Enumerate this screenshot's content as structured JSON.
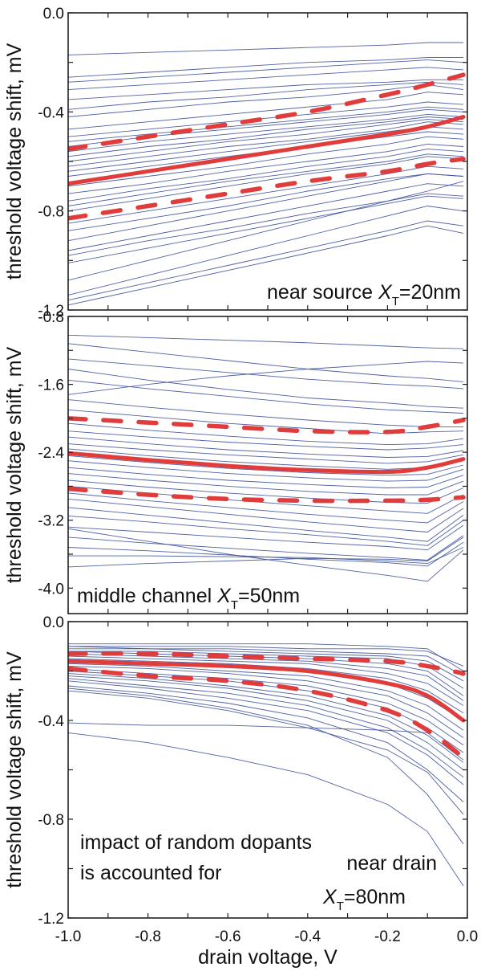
{
  "chart_data": {
    "type": "line",
    "xlabel": "drain voltage, V",
    "xlim": [
      -1.0,
      0.0
    ],
    "xticks": [
      "-1.0",
      "-0.8",
      "-0.6",
      "-0.4",
      "-0.2",
      "0.0"
    ],
    "xtick_values": [
      -1.0,
      -0.8,
      -0.6,
      -0.4,
      -0.2,
      0.0
    ],
    "x_minor_step": 0.1,
    "x": [
      -1.0,
      -0.8,
      -0.6,
      -0.4,
      -0.2,
      -0.1,
      -0.01
    ],
    "colors": {
      "traces": "#3b4f9a",
      "mean": "#e03c3c",
      "sigma": "#e03c3c"
    },
    "panels": [
      {
        "name": "near-source",
        "ylabel": "threshold voltage shift, mV",
        "ylim": [
          -1.2,
          0.0
        ],
        "yticks": [
          "0.0",
          "-0.4",
          "-0.8",
          "-1.2"
        ],
        "ytick_values": [
          0.0,
          -0.4,
          -0.8,
          -1.2
        ],
        "y_minor_step": 0.2,
        "annotation": {
          "text": "near source ",
          "symbol": "X",
          "subscript": "T",
          "value": "=20nm",
          "position": "bottom-right"
        },
        "mean": [
          -0.69,
          -0.64,
          -0.59,
          -0.54,
          -0.49,
          -0.46,
          -0.42
        ],
        "upper_sigma": [
          -0.55,
          -0.5,
          -0.45,
          -0.4,
          -0.33,
          -0.29,
          -0.25
        ],
        "lower_sigma": [
          -0.83,
          -0.78,
          -0.73,
          -0.68,
          -0.64,
          -0.61,
          -0.59
        ],
        "traces": [
          [
            -0.17,
            -0.16,
            -0.15,
            -0.14,
            -0.13,
            -0.12,
            -0.12
          ],
          [
            -0.26,
            -0.24,
            -0.22,
            -0.2,
            -0.19,
            -0.18,
            -0.18
          ],
          [
            -0.28,
            -0.26,
            -0.24,
            -0.22,
            -0.2,
            -0.19,
            -0.2
          ],
          [
            -0.31,
            -0.29,
            -0.27,
            -0.25,
            -0.23,
            -0.22,
            -0.23
          ],
          [
            -0.35,
            -0.33,
            -0.31,
            -0.29,
            -0.28,
            -0.27,
            -0.27
          ],
          [
            -0.39,
            -0.36,
            -0.34,
            -0.31,
            -0.29,
            -0.28,
            -0.29
          ],
          [
            -0.42,
            -0.39,
            -0.36,
            -0.34,
            -0.31,
            -0.29,
            -0.31
          ],
          [
            -0.47,
            -0.44,
            -0.41,
            -0.38,
            -0.35,
            -0.32,
            -0.33
          ],
          [
            -0.5,
            -0.47,
            -0.44,
            -0.41,
            -0.38,
            -0.36,
            -0.37
          ],
          [
            -0.52,
            -0.49,
            -0.46,
            -0.43,
            -0.4,
            -0.38,
            -0.39
          ],
          [
            -0.54,
            -0.5,
            -0.47,
            -0.44,
            -0.41,
            -0.39,
            -0.4
          ],
          [
            -0.56,
            -0.52,
            -0.49,
            -0.46,
            -0.43,
            -0.41,
            -0.42
          ],
          [
            -0.58,
            -0.54,
            -0.51,
            -0.47,
            -0.44,
            -0.42,
            -0.43
          ],
          [
            -0.6,
            -0.56,
            -0.52,
            -0.49,
            -0.45,
            -0.43,
            -0.44
          ],
          [
            -0.62,
            -0.58,
            -0.54,
            -0.51,
            -0.47,
            -0.44,
            -0.45
          ],
          [
            -0.64,
            -0.6,
            -0.56,
            -0.52,
            -0.48,
            -0.46,
            -0.47
          ],
          [
            -0.66,
            -0.62,
            -0.58,
            -0.54,
            -0.5,
            -0.48,
            -0.49
          ],
          [
            -0.7,
            -0.66,
            -0.62,
            -0.57,
            -0.53,
            -0.5,
            -0.51
          ],
          [
            -0.73,
            -0.69,
            -0.64,
            -0.6,
            -0.56,
            -0.53,
            -0.54
          ],
          [
            -0.76,
            -0.71,
            -0.67,
            -0.62,
            -0.58,
            -0.55,
            -0.56
          ],
          [
            -0.78,
            -0.73,
            -0.68,
            -0.64,
            -0.6,
            -0.57,
            -0.58
          ],
          [
            -0.8,
            -0.75,
            -0.7,
            -0.65,
            -0.61,
            -0.58,
            -0.59
          ],
          [
            -0.85,
            -0.8,
            -0.75,
            -0.7,
            -0.65,
            -0.62,
            -0.63
          ],
          [
            -0.88,
            -0.83,
            -0.78,
            -0.72,
            -0.67,
            -0.65,
            -0.66
          ],
          [
            -0.92,
            -0.86,
            -0.8,
            -0.74,
            -0.68,
            -0.65,
            -0.66
          ],
          [
            -0.96,
            -0.9,
            -0.84,
            -0.78,
            -0.72,
            -0.69,
            -0.7
          ],
          [
            -0.98,
            -0.92,
            -0.87,
            -0.81,
            -0.76,
            -0.73,
            -0.74
          ],
          [
            -1.01,
            -0.95,
            -0.89,
            -0.83,
            -0.77,
            -0.74,
            -0.75
          ],
          [
            -1.08,
            -1.0,
            -0.92,
            -0.84,
            -0.76,
            -0.72,
            -0.68
          ],
          [
            -1.14,
            -1.06,
            -0.98,
            -0.9,
            -0.82,
            -0.78,
            -0.8
          ],
          [
            -1.16,
            -1.09,
            -1.02,
            -0.95,
            -0.88,
            -0.84,
            -0.86
          ],
          [
            -1.18,
            -1.11,
            -1.04,
            -0.97,
            -0.9,
            -0.86,
            -0.89
          ]
        ]
      },
      {
        "name": "middle-channel",
        "ylabel": "threshold voltage shift, mV",
        "ylim": [
          -4.3,
          -0.8
        ],
        "yticks": [
          "-0.8",
          "-1.6",
          "-2.4",
          "-3.2",
          "-4.0"
        ],
        "ytick_values": [
          -0.8,
          -1.6,
          -2.4,
          -3.2,
          -4.0
        ],
        "y_minor_step": 0.4,
        "annotation": {
          "text": "middle channel  ",
          "symbol": "X",
          "subscript": "T",
          "value": "=50nm",
          "position": "bottom-left"
        },
        "mean": [
          -2.41,
          -2.49,
          -2.56,
          -2.61,
          -2.63,
          -2.58,
          -2.48
        ],
        "upper_sigma": [
          -2.0,
          -2.05,
          -2.1,
          -2.15,
          -2.16,
          -2.1,
          -2.02
        ],
        "lower_sigma": [
          -2.83,
          -2.9,
          -2.95,
          -2.97,
          -2.97,
          -2.96,
          -2.93
        ],
        "traces": [
          [
            -1.02,
            -1.05,
            -1.08,
            -1.11,
            -1.15,
            -1.17,
            -1.18
          ],
          [
            -1.12,
            -1.22,
            -1.32,
            -1.42,
            -1.5,
            -1.53,
            -1.57
          ],
          [
            -1.3,
            -1.38,
            -1.46,
            -1.54,
            -1.6,
            -1.62,
            -1.65
          ],
          [
            -1.42,
            -1.55,
            -1.66,
            -1.76,
            -1.82,
            -1.86,
            -1.88
          ],
          [
            -1.55,
            -1.65,
            -1.74,
            -1.83,
            -1.9,
            -1.92,
            -1.94
          ],
          [
            -1.72,
            -1.6,
            -1.5,
            -1.42,
            -1.36,
            -1.33,
            -1.35
          ],
          [
            -1.78,
            -1.87,
            -1.95,
            -2.02,
            -2.08,
            -2.1,
            -2.1
          ],
          [
            -1.9,
            -1.98,
            -2.06,
            -2.12,
            -2.18,
            -2.16,
            -2.15
          ],
          [
            -2.06,
            -2.14,
            -2.21,
            -2.27,
            -2.31,
            -2.3,
            -2.24
          ],
          [
            -2.15,
            -2.22,
            -2.28,
            -2.33,
            -2.37,
            -2.35,
            -2.31
          ],
          [
            -2.22,
            -2.3,
            -2.37,
            -2.42,
            -2.46,
            -2.45,
            -2.38
          ],
          [
            -2.3,
            -2.37,
            -2.43,
            -2.48,
            -2.53,
            -2.51,
            -2.43
          ],
          [
            -2.36,
            -2.44,
            -2.51,
            -2.56,
            -2.6,
            -2.58,
            -2.5
          ],
          [
            -2.44,
            -2.52,
            -2.59,
            -2.64,
            -2.67,
            -2.66,
            -2.55
          ],
          [
            -2.5,
            -2.58,
            -2.65,
            -2.7,
            -2.74,
            -2.73,
            -2.6
          ],
          [
            -2.58,
            -2.66,
            -2.73,
            -2.78,
            -2.82,
            -2.81,
            -2.67
          ],
          [
            -2.65,
            -2.73,
            -2.8,
            -2.86,
            -2.9,
            -2.9,
            -2.74
          ],
          [
            -2.73,
            -2.81,
            -2.88,
            -2.94,
            -2.99,
            -3.0,
            -2.82
          ],
          [
            -2.8,
            -2.88,
            -2.96,
            -3.03,
            -3.09,
            -3.12,
            -2.9
          ],
          [
            -2.88,
            -2.97,
            -3.05,
            -3.13,
            -3.2,
            -3.23,
            -2.98
          ],
          [
            -2.95,
            -3.04,
            -3.13,
            -3.22,
            -3.3,
            -3.34,
            -3.06
          ],
          [
            -3.05,
            -3.14,
            -3.23,
            -3.32,
            -3.4,
            -3.45,
            -3.14
          ],
          [
            -3.15,
            -3.22,
            -3.3,
            -3.37,
            -3.45,
            -3.5,
            -3.2
          ],
          [
            -3.28,
            -3.34,
            -3.4,
            -3.46,
            -3.51,
            -3.55,
            -3.26
          ],
          [
            -3.4,
            -3.47,
            -3.53,
            -3.59,
            -3.64,
            -3.67,
            -3.38
          ],
          [
            -3.52,
            -3.56,
            -3.61,
            -3.66,
            -3.7,
            -3.74,
            -3.46
          ],
          [
            -3.62,
            -3.62,
            -3.63,
            -3.64,
            -3.68,
            -3.71,
            -3.52
          ],
          [
            -3.75,
            -3.71,
            -3.68,
            -3.65,
            -3.66,
            -3.68,
            -3.4
          ],
          [
            -3.3,
            -3.45,
            -3.6,
            -3.73,
            -3.85,
            -3.92,
            -3.55
          ]
        ]
      },
      {
        "name": "near-drain",
        "ylabel": "threshold voltage shift, mV",
        "ylim": [
          -1.2,
          0.0
        ],
        "yticks": [
          "0.0",
          "-0.4",
          "-0.8",
          "-1.2"
        ],
        "ytick_values": [
          0.0,
          -0.4,
          -0.8,
          -1.2
        ],
        "y_minor_step": 0.2,
        "annotation_lines": [
          "impact of random dopants",
          "is accounted for"
        ],
        "annotation": {
          "text": "near drain",
          "symbol": "X",
          "subscript": "T",
          "value": "=80nm",
          "position": "bottom-right"
        },
        "mean": [
          -0.16,
          -0.17,
          -0.18,
          -0.2,
          -0.25,
          -0.3,
          -0.4
        ],
        "upper_sigma": [
          -0.13,
          -0.13,
          -0.14,
          -0.15,
          -0.16,
          -0.18,
          -0.21
        ],
        "lower_sigma": [
          -0.19,
          -0.22,
          -0.24,
          -0.28,
          -0.36,
          -0.44,
          -0.55
        ],
        "traces": [
          [
            -0.09,
            -0.09,
            -0.09,
            -0.09,
            -0.1,
            -0.11,
            -0.2
          ],
          [
            -0.1,
            -0.1,
            -0.1,
            -0.11,
            -0.11,
            -0.12,
            -0.18
          ],
          [
            -0.1,
            -0.11,
            -0.11,
            -0.12,
            -0.13,
            -0.14,
            -0.22
          ],
          [
            -0.11,
            -0.11,
            -0.12,
            -0.13,
            -0.14,
            -0.16,
            -0.24
          ],
          [
            -0.12,
            -0.12,
            -0.13,
            -0.14,
            -0.15,
            -0.18,
            -0.27
          ],
          [
            -0.12,
            -0.13,
            -0.14,
            -0.15,
            -0.17,
            -0.2,
            -0.3
          ],
          [
            -0.13,
            -0.14,
            -0.15,
            -0.16,
            -0.19,
            -0.22,
            -0.32
          ],
          [
            -0.14,
            -0.15,
            -0.16,
            -0.17,
            -0.21,
            -0.25,
            -0.34
          ],
          [
            -0.15,
            -0.16,
            -0.17,
            -0.19,
            -0.23,
            -0.28,
            -0.37
          ],
          [
            -0.16,
            -0.17,
            -0.18,
            -0.2,
            -0.25,
            -0.31,
            -0.4
          ],
          [
            -0.17,
            -0.18,
            -0.2,
            -0.22,
            -0.28,
            -0.34,
            -0.44
          ],
          [
            -0.18,
            -0.19,
            -0.21,
            -0.24,
            -0.3,
            -0.37,
            -0.47
          ],
          [
            -0.19,
            -0.21,
            -0.23,
            -0.26,
            -0.33,
            -0.4,
            -0.5
          ],
          [
            -0.2,
            -0.22,
            -0.24,
            -0.28,
            -0.35,
            -0.43,
            -0.53
          ],
          [
            -0.21,
            -0.23,
            -0.26,
            -0.3,
            -0.38,
            -0.46,
            -0.57
          ],
          [
            -0.22,
            -0.24,
            -0.27,
            -0.32,
            -0.4,
            -0.49,
            -0.6
          ],
          [
            -0.23,
            -0.26,
            -0.29,
            -0.34,
            -0.43,
            -0.52,
            -0.63
          ],
          [
            -0.24,
            -0.27,
            -0.31,
            -0.36,
            -0.45,
            -0.54,
            -0.66
          ],
          [
            -0.26,
            -0.29,
            -0.33,
            -0.39,
            -0.49,
            -0.6,
            -0.73
          ],
          [
            -0.27,
            -0.3,
            -0.35,
            -0.42,
            -0.55,
            -0.7,
            -0.9
          ],
          [
            -0.28,
            -0.31,
            -0.36,
            -0.43,
            -0.52,
            -0.61,
            -0.78
          ],
          [
            -0.41,
            -0.42,
            -0.42,
            -0.43,
            -0.44,
            -0.45,
            -0.56
          ],
          [
            -0.45,
            -0.49,
            -0.55,
            -0.62,
            -0.74,
            -0.85,
            -1.07
          ]
        ]
      }
    ]
  }
}
